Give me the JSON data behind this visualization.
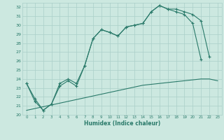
{
  "xlabel": "Humidex (Indice chaleur)",
  "x": [
    0,
    1,
    2,
    3,
    4,
    5,
    6,
    7,
    8,
    9,
    10,
    11,
    12,
    13,
    14,
    15,
    16,
    17,
    18,
    19,
    20,
    21,
    22,
    23
  ],
  "line1": [
    23.5,
    21.8,
    20.5,
    21.2,
    23.2,
    23.8,
    23.2,
    25.5,
    28.5,
    29.5,
    29.2,
    28.8,
    29.8,
    30.0,
    30.2,
    31.5,
    32.2,
    31.8,
    31.5,
    31.2,
    30.2,
    26.2,
    null,
    null
  ],
  "line2": [
    23.5,
    21.5,
    20.5,
    21.2,
    23.5,
    24.0,
    23.5,
    25.5,
    28.5,
    29.5,
    29.2,
    28.8,
    29.8,
    30.0,
    30.2,
    31.5,
    32.2,
    31.8,
    31.8,
    31.5,
    31.2,
    30.5,
    26.5,
    null
  ],
  "line3": [
    20.5,
    20.7,
    20.9,
    21.1,
    21.3,
    21.5,
    21.7,
    21.9,
    22.1,
    22.3,
    22.5,
    22.7,
    22.9,
    23.1,
    23.3,
    23.4,
    23.5,
    23.6,
    23.7,
    23.8,
    23.9,
    24.0,
    24.0,
    23.8
  ],
  "line_color": "#2a7a6a",
  "bg_color": "#cce8e0",
  "grid_color": "#aacfc8",
  "ylim": [
    20,
    32.5
  ],
  "yticks": [
    20,
    21,
    22,
    23,
    24,
    25,
    26,
    27,
    28,
    29,
    30,
    31,
    32
  ],
  "xticks": [
    0,
    1,
    2,
    3,
    4,
    5,
    6,
    7,
    8,
    9,
    10,
    11,
    12,
    13,
    14,
    15,
    16,
    17,
    18,
    19,
    20,
    21,
    22,
    23
  ]
}
